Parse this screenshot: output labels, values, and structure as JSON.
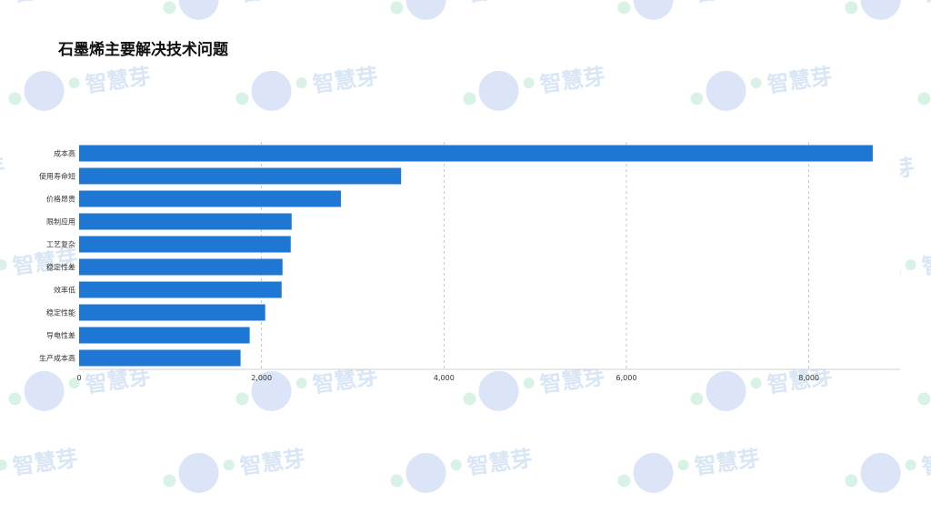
{
  "page": {
    "title": "石墨烯主要解决技术问题",
    "watermark_text": "智慧芽"
  },
  "colors": {
    "bar": "#1f77d4",
    "grid": "#b8b8b8",
    "axis": "#cfcfcf",
    "label": "#333333",
    "watermark_text": "#d9e6f5",
    "watermark_dot_green": "#d8f3e6",
    "watermark_dot_blue": "#dbe5f7"
  },
  "chart_data": {
    "type": "bar",
    "orientation": "horizontal",
    "categories": [
      "成本高",
      "使用寿命短",
      "价格昂贵",
      "限制应用",
      "工艺复杂",
      "稳定性差",
      "效率低",
      "稳定性能",
      "导电性差",
      "生产成本高"
    ],
    "values": [
      8700,
      3530,
      2870,
      2330,
      2320,
      2230,
      2220,
      2040,
      1870,
      1770
    ],
    "xlim": [
      0,
      9000
    ],
    "xticks": [
      0,
      2000,
      4000,
      6000,
      8000
    ],
    "xtick_labels": [
      "0",
      "2,000",
      "4,000",
      "6,000",
      "8,000"
    ],
    "grid": "vertical-dashed",
    "title": "",
    "xlabel": "",
    "ylabel": ""
  }
}
